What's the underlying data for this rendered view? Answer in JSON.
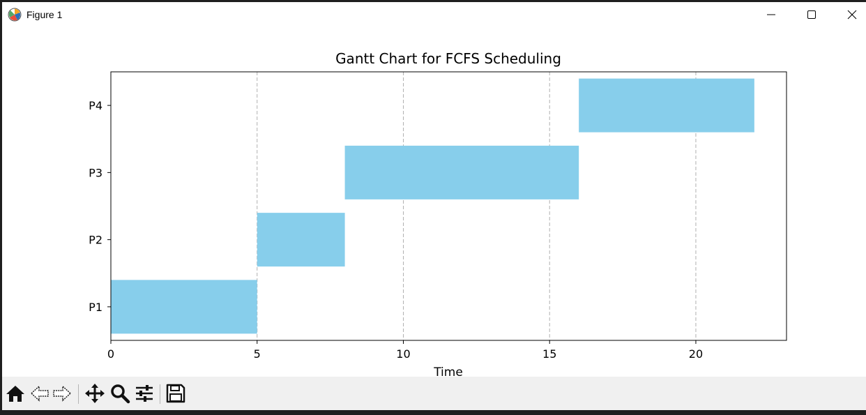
{
  "window": {
    "title": "Figure 1",
    "icon": "matplotlib-icon",
    "controls": [
      "minimize-icon",
      "maximize-icon",
      "close-icon"
    ]
  },
  "toolbar": {
    "buttons": [
      {
        "name": "home-button",
        "icon": "home-icon"
      },
      {
        "name": "back-button",
        "icon": "back-arrow-icon"
      },
      {
        "name": "forward-button",
        "icon": "forward-arrow-icon"
      },
      {
        "name": "pan-button",
        "icon": "move-icon"
      },
      {
        "name": "zoom-button",
        "icon": "magnifier-icon"
      },
      {
        "name": "configure-subplots-button",
        "icon": "sliders-icon"
      },
      {
        "name": "save-button",
        "icon": "floppy-disk-icon"
      }
    ]
  },
  "chart_data": {
    "type": "gantt",
    "title": "Gantt Chart for FCFS Scheduling",
    "xlabel": "Time",
    "ylabel": "",
    "xlim": [
      0,
      23.1
    ],
    "xticks": [
      0,
      5,
      10,
      15,
      20
    ],
    "categories": [
      "P1",
      "P2",
      "P3",
      "P4"
    ],
    "tasks": [
      {
        "process": "P1",
        "start": 0,
        "end": 5
      },
      {
        "process": "P2",
        "start": 5,
        "end": 8
      },
      {
        "process": "P3",
        "start": 8,
        "end": 16
      },
      {
        "process": "P4",
        "start": 16,
        "end": 22
      }
    ],
    "bar_color": "#87ceeb",
    "grid": "x-dashed",
    "legend": "none"
  }
}
